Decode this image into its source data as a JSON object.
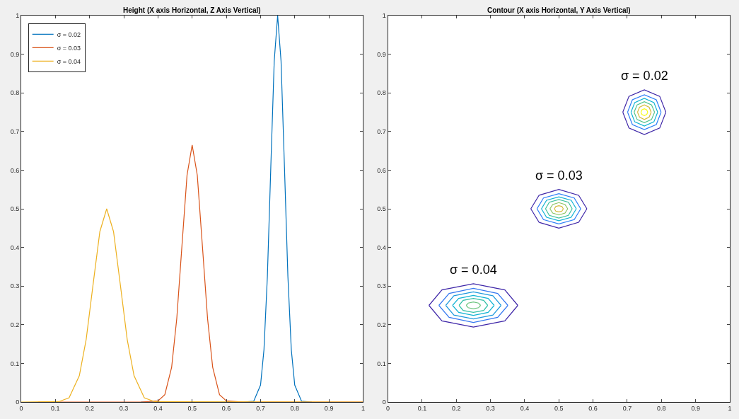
{
  "chart_data": [
    {
      "type": "line",
      "title": "Height (X axis Horizontal, Z Axis Vertical)",
      "legend": "top left",
      "xlim": [
        0,
        1
      ],
      "xticks": [
        0,
        0.1,
        0.2,
        0.3,
        0.4,
        0.5,
        0.6,
        0.7,
        0.8,
        0.9,
        1
      ],
      "ylim": [
        0,
        1
      ],
      "yticks": [
        0,
        0.1,
        0.2,
        0.3,
        0.4,
        0.5,
        0.6,
        0.7,
        0.8,
        0.9,
        1
      ],
      "series": [
        {
          "name": "σ = 0.02",
          "color": "#0072bd",
          "x": [
            0.35,
            0.65,
            0.68,
            0.7,
            0.71,
            0.72,
            0.73,
            0.74,
            0.75,
            0.76,
            0.77,
            0.78,
            0.79,
            0.8,
            0.82,
            0.85
          ],
          "values": [
            0,
            0,
            0.002,
            0.044,
            0.135,
            0.325,
            0.607,
            0.882,
            1,
            0.882,
            0.607,
            0.325,
            0.135,
            0.044,
            0.002,
            0
          ]
        },
        {
          "name": "σ = 0.03",
          "color": "#d95319",
          "x": [
            0.05,
            0.35,
            0.4,
            0.42,
            0.44,
            0.455,
            0.47,
            0.485,
            0.5,
            0.515,
            0.53,
            0.545,
            0.56,
            0.58,
            0.6,
            0.65,
            1.0
          ],
          "values": [
            0,
            0,
            0.003,
            0.019,
            0.09,
            0.216,
            0.403,
            0.587,
            0.665,
            0.587,
            0.403,
            0.216,
            0.09,
            0.019,
            0.003,
            0,
            0
          ]
        },
        {
          "name": "σ = 0.04",
          "color": "#edb120",
          "x": [
            0,
            0.11,
            0.14,
            0.17,
            0.19,
            0.21,
            0.23,
            0.25,
            0.27,
            0.29,
            0.31,
            0.33,
            0.36,
            0.39,
            1.0
          ],
          "values": [
            0,
            0.001,
            0.011,
            0.068,
            0.162,
            0.303,
            0.441,
            0.5,
            0.441,
            0.303,
            0.162,
            0.068,
            0.011,
            0.001,
            0
          ]
        }
      ]
    },
    {
      "type": "line",
      "title": "Contour (X axis Horizontal, Y Axis Vertical)",
      "legend": false,
      "xlim": [
        0,
        1
      ],
      "xticks": [
        0,
        0.1,
        0.2,
        0.3,
        0.4,
        0.5,
        0.6,
        0.7,
        0.8,
        0.9,
        1
      ],
      "ylim": [
        0,
        1
      ],
      "yticks": [
        0,
        0.1,
        0.2,
        0.3,
        0.4,
        0.5,
        0.6,
        0.7,
        0.8,
        0.9,
        1
      ],
      "annotations": [
        {
          "text": "σ = 0.02",
          "x": 0.75,
          "y": 0.808
        },
        {
          "text": "σ = 0.03",
          "x": 0.5,
          "y": 0.55
        },
        {
          "text": "σ = 0.04",
          "x": 0.25,
          "y": 0.306
        }
      ],
      "series": [
        {
          "color": "#3e26a8",
          "x": [
            0.12,
            0.158,
            0.25,
            0.342,
            0.38,
            null,
            0.12,
            0.158,
            0.25,
            0.342,
            0.38
          ],
          "values": [
            0.25,
            0.29,
            0.306,
            0.29,
            0.25,
            null,
            0.25,
            0.21,
            0.194,
            0.21,
            0.25
          ]
        },
        {
          "color": "#3578f0",
          "x": [
            0.149,
            0.179,
            0.25,
            0.321,
            0.351,
            null,
            0.149,
            0.179,
            0.25,
            0.321,
            0.351
          ],
          "values": [
            0.25,
            0.281,
            0.294,
            0.281,
            0.25,
            null,
            0.25,
            0.219,
            0.206,
            0.219,
            0.25
          ]
        },
        {
          "color": "#1e9ade",
          "x": [
            0.169,
            0.193,
            0.25,
            0.307,
            0.331,
            null,
            0.169,
            0.193,
            0.25,
            0.307,
            0.331
          ],
          "values": [
            0.25,
            0.275,
            0.285,
            0.275,
            0.25,
            null,
            0.25,
            0.225,
            0.215,
            0.225,
            0.25
          ]
        },
        {
          "color": "#10b3d4",
          "x": [
            0.189,
            0.207,
            0.25,
            0.293,
            0.311,
            null,
            0.189,
            0.207,
            0.25,
            0.293,
            0.311
          ],
          "values": [
            0.25,
            0.268,
            0.276,
            0.268,
            0.25,
            null,
            0.25,
            0.232,
            0.224,
            0.232,
            0.25
          ]
        },
        {
          "color": "#33bfa6",
          "x": [
            0.208,
            0.22,
            0.25,
            0.28,
            0.292,
            null,
            0.208,
            0.22,
            0.25,
            0.28,
            0.292
          ],
          "values": [
            0.25,
            0.263,
            0.268,
            0.263,
            0.25,
            null,
            0.25,
            0.237,
            0.232,
            0.237,
            0.25
          ]
        },
        {
          "color": "#6cc57e",
          "x": [
            0.229,
            0.235,
            0.25,
            0.265,
            0.271,
            null,
            0.229,
            0.235,
            0.25,
            0.265,
            0.271
          ],
          "values": [
            0.25,
            0.256,
            0.259,
            0.256,
            0.25,
            null,
            0.25,
            0.244,
            0.241,
            0.244,
            0.25
          ]
        },
        {
          "color": "#3e26a8",
          "x": [
            0.418,
            0.442,
            0.5,
            0.558,
            0.582,
            null,
            0.418,
            0.442,
            0.5,
            0.558,
            0.582
          ],
          "values": [
            0.5,
            0.535,
            0.55,
            0.535,
            0.5,
            null,
            0.5,
            0.465,
            0.45,
            0.465,
            0.5
          ]
        },
        {
          "color": "#2d7ef7",
          "x": [
            0.436,
            0.455,
            0.5,
            0.545,
            0.564,
            null,
            0.436,
            0.455,
            0.5,
            0.545,
            0.564
          ],
          "values": [
            0.5,
            0.528,
            0.539,
            0.528,
            0.5,
            null,
            0.5,
            0.472,
            0.461,
            0.472,
            0.5
          ]
        },
        {
          "color": "#10b3d4",
          "x": [
            0.449,
            0.464,
            0.5,
            0.536,
            0.551,
            null,
            0.449,
            0.464,
            0.5,
            0.536,
            0.551
          ],
          "values": [
            0.5,
            0.522,
            0.531,
            0.522,
            0.5,
            null,
            0.5,
            0.478,
            0.469,
            0.478,
            0.5
          ]
        },
        {
          "color": "#3fc29c",
          "x": [
            0.461,
            0.472,
            0.5,
            0.528,
            0.539,
            null,
            0.461,
            0.472,
            0.5,
            0.528,
            0.539
          ],
          "values": [
            0.5,
            0.517,
            0.524,
            0.517,
            0.5,
            null,
            0.5,
            0.483,
            0.476,
            0.483,
            0.5
          ]
        },
        {
          "color": "#8cc462",
          "x": [
            0.474,
            0.482,
            0.5,
            0.518,
            0.526,
            null,
            0.474,
            0.482,
            0.5,
            0.518,
            0.526
          ],
          "values": [
            0.5,
            0.511,
            0.516,
            0.511,
            0.5,
            null,
            0.5,
            0.489,
            0.484,
            0.489,
            0.5
          ]
        },
        {
          "color": "#d6bb3b",
          "x": [
            0.487,
            0.491,
            0.5,
            0.509,
            0.513,
            null,
            0.487,
            0.491,
            0.5,
            0.509,
            0.513
          ],
          "values": [
            0.5,
            0.506,
            0.508,
            0.506,
            0.5,
            null,
            0.5,
            0.494,
            0.492,
            0.494,
            0.5
          ]
        },
        {
          "color": "#3e26a8",
          "x": [
            0.687,
            0.705,
            0.75,
            0.795,
            0.813,
            null,
            0.687,
            0.705,
            0.75,
            0.795,
            0.813
          ],
          "values": [
            0.75,
            0.791,
            0.808,
            0.791,
            0.75,
            null,
            0.75,
            0.709,
            0.692,
            0.709,
            0.75
          ]
        },
        {
          "color": "#2d7ef7",
          "x": [
            0.701,
            0.715,
            0.75,
            0.785,
            0.799,
            null,
            0.701,
            0.715,
            0.75,
            0.785,
            0.799
          ],
          "values": [
            0.75,
            0.782,
            0.795,
            0.782,
            0.75,
            null,
            0.75,
            0.718,
            0.705,
            0.718,
            0.75
          ]
        },
        {
          "color": "#10b3d4",
          "x": [
            0.711,
            0.722,
            0.75,
            0.778,
            0.789,
            null,
            0.711,
            0.722,
            0.75,
            0.778,
            0.789
          ],
          "values": [
            0.75,
            0.775,
            0.786,
            0.775,
            0.75,
            null,
            0.75,
            0.725,
            0.714,
            0.725,
            0.75
          ]
        },
        {
          "color": "#53c48a",
          "x": [
            0.72,
            0.729,
            0.75,
            0.771,
            0.78,
            null,
            0.72,
            0.729,
            0.75,
            0.771,
            0.78
          ],
          "values": [
            0.75,
            0.769,
            0.777,
            0.769,
            0.75,
            null,
            0.75,
            0.731,
            0.723,
            0.731,
            0.75
          ]
        },
        {
          "color": "#d6bb3b",
          "x": [
            0.73,
            0.736,
            0.75,
            0.764,
            0.77,
            null,
            0.73,
            0.736,
            0.75,
            0.764,
            0.77
          ],
          "values": [
            0.75,
            0.763,
            0.769,
            0.763,
            0.75,
            null,
            0.75,
            0.737,
            0.731,
            0.737,
            0.75
          ]
        },
        {
          "color": "#f9fb15",
          "x": [
            0.74,
            0.743,
            0.75,
            0.757,
            0.76,
            null,
            0.74,
            0.743,
            0.75,
            0.757,
            0.76
          ],
          "values": [
            0.75,
            0.756,
            0.759,
            0.756,
            0.75,
            null,
            0.75,
            0.744,
            0.741,
            0.744,
            0.75
          ]
        }
      ]
    }
  ]
}
